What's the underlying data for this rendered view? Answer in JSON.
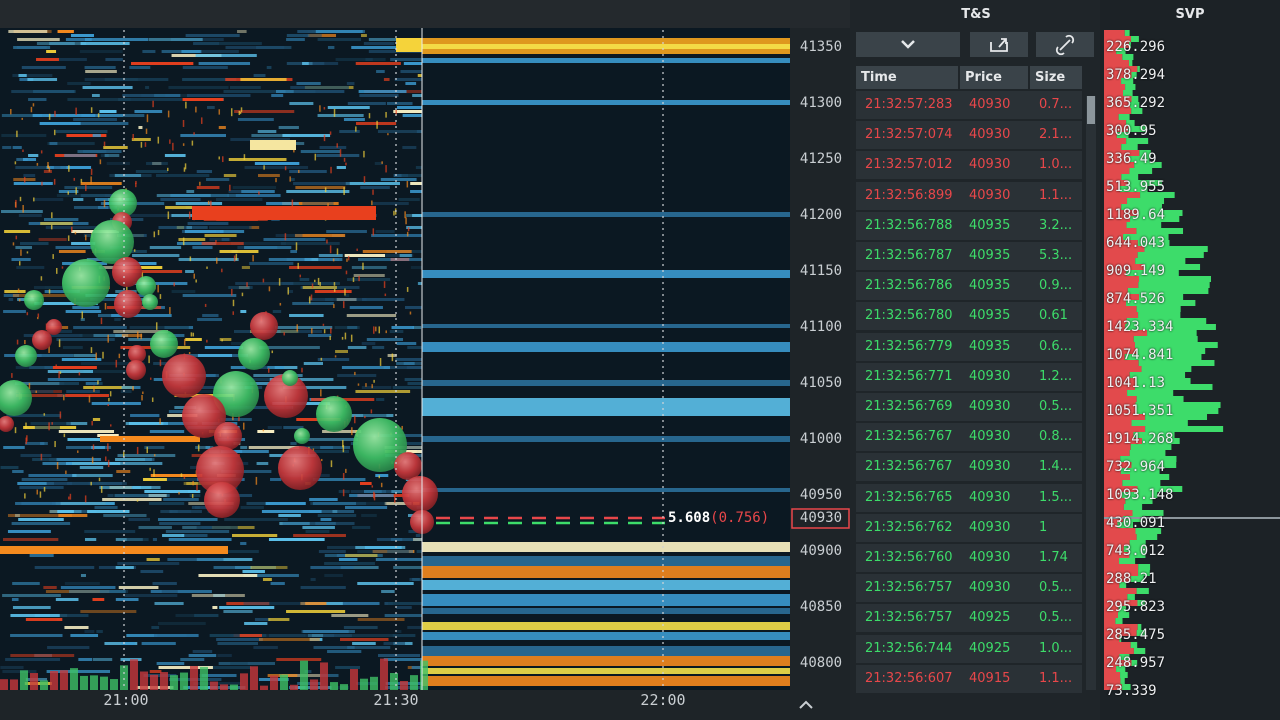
{
  "price_axis": {
    "labels": [
      "41350",
      "41300",
      "41250",
      "41200",
      "41150",
      "41100",
      "41050",
      "41000",
      "40950",
      "40900",
      "40850",
      "40800"
    ],
    "current_price": "40930"
  },
  "time_axis": {
    "labels": [
      "21:00",
      "21:30",
      "22:00"
    ]
  },
  "indicator": {
    "volume": "5.608",
    "delta": "(0.756)"
  },
  "time_and_sales": {
    "title": "T&S",
    "columns": [
      "Time",
      "Price",
      "Size"
    ],
    "rows": [
      {
        "time": "21:32:57:283",
        "price": "40930",
        "size": "0.7...",
        "color": "#e8474a"
      },
      {
        "time": "21:32:57:074",
        "price": "40930",
        "size": "2.1...",
        "color": "#e8474a"
      },
      {
        "time": "21:32:57:012",
        "price": "40930",
        "size": "1.0...",
        "color": "#e8474a"
      },
      {
        "time": "21:32:56:899",
        "price": "40930",
        "size": "1.1...",
        "color": "#e8474a"
      },
      {
        "time": "21:32:56:788",
        "price": "40935",
        "size": "3.2...",
        "color": "#3ddc6a"
      },
      {
        "time": "21:32:56:787",
        "price": "40935",
        "size": "5.3...",
        "color": "#3ddc6a"
      },
      {
        "time": "21:32:56:786",
        "price": "40935",
        "size": "0.9...",
        "color": "#3ddc6a"
      },
      {
        "time": "21:32:56:780",
        "price": "40935",
        "size": "0.61",
        "color": "#3ddc6a"
      },
      {
        "time": "21:32:56:779",
        "price": "40935",
        "size": "0.6...",
        "color": "#3ddc6a"
      },
      {
        "time": "21:32:56:771",
        "price": "40930",
        "size": "1.2...",
        "color": "#3ddc6a"
      },
      {
        "time": "21:32:56:769",
        "price": "40930",
        "size": "0.5...",
        "color": "#3ddc6a"
      },
      {
        "time": "21:32:56:767",
        "price": "40930",
        "size": "0.8...",
        "color": "#3ddc6a"
      },
      {
        "time": "21:32:56:767",
        "price": "40930",
        "size": "1.4...",
        "color": "#3ddc6a"
      },
      {
        "time": "21:32:56:765",
        "price": "40930",
        "size": "1.5...",
        "color": "#3ddc6a"
      },
      {
        "time": "21:32:56:762",
        "price": "40930",
        "size": "1",
        "color": "#3ddc6a"
      },
      {
        "time": "21:32:56:760",
        "price": "40930",
        "size": "1.74",
        "color": "#3ddc6a"
      },
      {
        "time": "21:32:56:757",
        "price": "40930",
        "size": "0.5...",
        "color": "#3ddc6a"
      },
      {
        "time": "21:32:56:757",
        "price": "40925",
        "size": "0.5...",
        "color": "#3ddc6a"
      },
      {
        "time": "21:32:56:744",
        "price": "40925",
        "size": "1.0...",
        "color": "#3ddc6a"
      },
      {
        "time": "21:32:56:607",
        "price": "40915",
        "size": "1.1...",
        "color": "#e8474a"
      }
    ]
  },
  "svp": {
    "title": "SVP",
    "labels": [
      "226.296",
      "378.294",
      "365.292",
      "300.95",
      "336.49",
      "513.955",
      "1189.64",
      "644.043",
      "909.149",
      "874.526",
      "1423.334",
      "1074.841",
      "1041.13",
      "1051.351",
      "1914.268",
      "732.964",
      "1093.148",
      "430.091",
      "743.012",
      "288.21",
      "295.823",
      "285.475",
      "248.957",
      "73.339"
    ]
  }
}
